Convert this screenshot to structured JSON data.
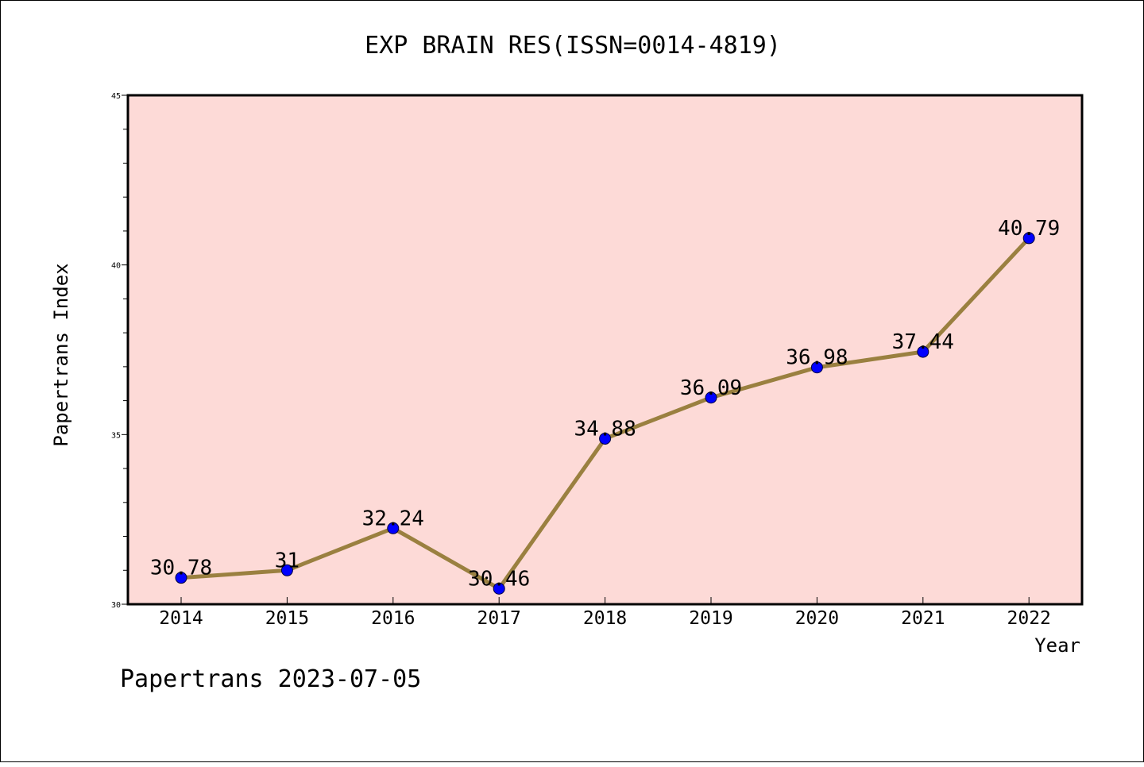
{
  "chart_data": {
    "type": "line",
    "title": "EXP BRAIN RES(ISSN=0014-4819)",
    "xlabel": "Year",
    "ylabel": "Papertrans Index",
    "categories": [
      "2014",
      "2015",
      "2016",
      "2017",
      "2018",
      "2019",
      "2020",
      "2021",
      "2022"
    ],
    "series": [
      {
        "values": [
          30.78,
          31,
          32.24,
          30.46,
          34.88,
          36.09,
          36.98,
          37.44,
          40.79
        ]
      }
    ],
    "data_labels": [
      "30.78",
      "31",
      "32.24",
      "30.46",
      "34.88",
      "36.09",
      "36.98",
      "37.44",
      "40.79"
    ],
    "ylim": [
      30,
      45
    ],
    "yticks": [
      "30",
      "35",
      "40",
      "45"
    ],
    "grid": false,
    "colors": {
      "plot_background": "#fddad7",
      "line": "#9a8040",
      "marker": "#0000ff"
    }
  },
  "footer": {
    "text": "Papertrans 2023-07-05"
  }
}
